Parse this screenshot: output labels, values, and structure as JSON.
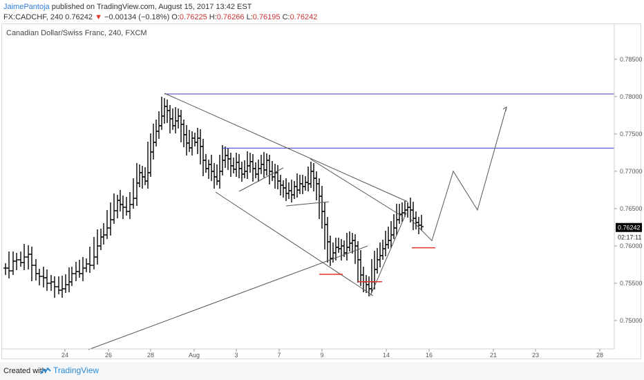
{
  "header": {
    "author": "JaimePantoja",
    "published_text": "published on TradingView.com, August 15, 2017 13:42 EST",
    "symbol": "FX:CADCHF, 240",
    "last_price": "0.76242",
    "arrow": "▼",
    "change": "−0.00134 (−0.18%)",
    "open_label": "O:",
    "open": "0.76225",
    "high_label": "H:",
    "high": "0.76266",
    "low_label": "L:",
    "low": "0.76195",
    "close_label": "C:",
    "close": "0.76242"
  },
  "chart_data": {
    "type": "ohlc",
    "title": "Canadian Dollar/Swiss Franc, 240, FXCM",
    "x_tick_labels": [
      "24",
      "26",
      "28",
      "Aug",
      "3",
      "7",
      "9",
      "14",
      "16",
      "21",
      "23",
      "28"
    ],
    "y_tick_labels": [
      "0.78500",
      "0.78000",
      "0.77500",
      "0.77000",
      "0.76500",
      "0.76000",
      "0.75500",
      "0.75000"
    ],
    "y_ticks": [
      0.785,
      0.78,
      0.775,
      0.77,
      0.765,
      0.76,
      0.755,
      0.75
    ],
    "ylim": [
      0.7462,
      0.7897
    ],
    "last_price_tag": "0.76242",
    "last_price_value": 0.76242,
    "countdown": "02:17:11",
    "horizontal_levels": [
      0.78035,
      0.7731
    ],
    "support_marks": [
      0.7562,
      0.7552,
      0.75975
    ],
    "projected_path_prices": [
      0.7636,
      0.7607,
      0.77,
      0.7648,
      0.7786
    ],
    "colors": {
      "bars": "#000000",
      "levels": "#3b3bc4",
      "support": "#e0332a",
      "price_tag": "#000000"
    }
  },
  "footer": {
    "created_with": "Created with",
    "brand": "TradingView"
  }
}
